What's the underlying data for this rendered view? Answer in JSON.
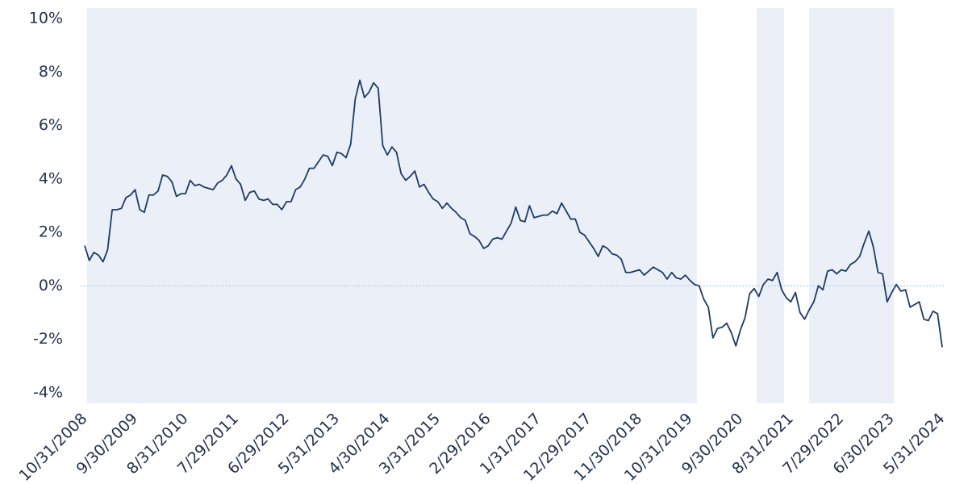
{
  "chart_data": {
    "type": "line",
    "categories": [
      "10/31/2008",
      null,
      null,
      null,
      null,
      null,
      null,
      null,
      null,
      null,
      null,
      "9/30/2009",
      null,
      null,
      null,
      null,
      null,
      null,
      null,
      null,
      null,
      null,
      "8/31/2010",
      null,
      null,
      null,
      null,
      null,
      null,
      null,
      null,
      null,
      null,
      "7/29/2011",
      null,
      null,
      null,
      null,
      null,
      null,
      null,
      null,
      null,
      null,
      "6/29/2012",
      null,
      null,
      null,
      null,
      null,
      null,
      null,
      null,
      null,
      null,
      "5/31/2013",
      null,
      null,
      null,
      null,
      null,
      null,
      null,
      null,
      null,
      null,
      "4/30/2014",
      null,
      null,
      null,
      null,
      null,
      null,
      null,
      null,
      null,
      null,
      "3/31/2015",
      null,
      null,
      null,
      null,
      null,
      null,
      null,
      null,
      null,
      null,
      "2/29/2016",
      null,
      null,
      null,
      null,
      null,
      null,
      null,
      null,
      null,
      null,
      "1/31/2017",
      null,
      null,
      null,
      null,
      null,
      null,
      null,
      null,
      null,
      null,
      "12/29/2017",
      null,
      null,
      null,
      null,
      null,
      null,
      null,
      null,
      null,
      null,
      "11/30/2018",
      null,
      null,
      null,
      null,
      null,
      null,
      null,
      null,
      null,
      null,
      "10/31/2019",
      null,
      null,
      null,
      null,
      null,
      null,
      null,
      null,
      null,
      null,
      "9/30/2020",
      null,
      null,
      null,
      null,
      null,
      null,
      null,
      null,
      null,
      null,
      "8/31/2021",
      null,
      null,
      null,
      null,
      null,
      null,
      null,
      null,
      null,
      null,
      "7/29/2022",
      null,
      null,
      null,
      null,
      null,
      null,
      null,
      null,
      null,
      null,
      "6/30/2023",
      null,
      null,
      null,
      null,
      null,
      null,
      null,
      null,
      null,
      null,
      "5/31/2024"
    ],
    "values": [
      1.5,
      0.95,
      1.25,
      1.15,
      0.9,
      1.35,
      2.85,
      2.85,
      2.9,
      3.3,
      3.4,
      3.6,
      2.85,
      2.75,
      3.4,
      3.4,
      3.55,
      4.15,
      4.1,
      3.9,
      3.35,
      3.45,
      3.45,
      3.95,
      3.75,
      3.8,
      3.7,
      3.65,
      3.6,
      3.85,
      3.95,
      4.15,
      4.5,
      4.0,
      3.8,
      3.2,
      3.5,
      3.55,
      3.25,
      3.2,
      3.25,
      3.05,
      3.05,
      2.85,
      3.15,
      3.15,
      3.6,
      3.7,
      4.0,
      4.4,
      4.4,
      4.65,
      4.9,
      4.85,
      4.5,
      5.0,
      4.95,
      4.8,
      5.3,
      7.0,
      7.7,
      7.05,
      7.25,
      7.6,
      7.4,
      5.25,
      4.9,
      5.2,
      5.0,
      4.2,
      3.95,
      4.1,
      4.3,
      3.7,
      3.8,
      3.5,
      3.25,
      3.15,
      2.9,
      3.1,
      2.9,
      2.75,
      2.55,
      2.45,
      1.95,
      1.85,
      1.7,
      1.4,
      1.5,
      1.75,
      1.8,
      1.75,
      2.05,
      2.35,
      2.95,
      2.45,
      2.4,
      3.0,
      2.55,
      2.6,
      2.65,
      2.65,
      2.8,
      2.7,
      3.1,
      2.8,
      2.5,
      2.5,
      2.0,
      1.9,
      1.65,
      1.4,
      1.1,
      1.5,
      1.4,
      1.2,
      1.15,
      1.0,
      0.5,
      0.5,
      0.55,
      0.6,
      0.4,
      0.55,
      0.7,
      0.6,
      0.5,
      0.25,
      0.5,
      0.3,
      0.25,
      0.4,
      0.2,
      0.05,
      0.0,
      -0.5,
      -0.8,
      -1.95,
      -1.6,
      -1.55,
      -1.4,
      -1.75,
      -2.25,
      -1.65,
      -1.2,
      -0.3,
      -0.1,
      -0.4,
      0.05,
      0.25,
      0.2,
      0.5,
      -0.15,
      -0.45,
      -0.6,
      -0.25,
      -1.0,
      -1.25,
      -0.9,
      -0.6,
      0.0,
      -0.15,
      0.55,
      0.6,
      0.45,
      0.6,
      0.55,
      0.8,
      0.9,
      1.1,
      1.6,
      2.05,
      1.45,
      0.5,
      0.45,
      -0.6,
      -0.25,
      0.05,
      -0.2,
      -0.15,
      -0.8,
      -0.7,
      -0.6,
      -1.25,
      -1.3,
      -0.95,
      -1.05,
      -2.3
    ],
    "color": "#1f3a64",
    "ylim": [
      -4.4,
      10.4
    ],
    "yticks": [
      {
        "value": -4,
        "label": "-4%"
      },
      {
        "value": -2,
        "label": "-2%"
      },
      {
        "value": 0,
        "label": "0%"
      },
      {
        "value": 2,
        "label": "2%"
      },
      {
        "value": 4,
        "label": "4%"
      },
      {
        "value": 6,
        "label": "6%"
      },
      {
        "value": 8,
        "label": "8%"
      },
      {
        "value": 10,
        "label": "10%"
      }
    ],
    "shaded_ranges": [
      {
        "start": 0.5,
        "end": 133.5
      },
      {
        "start": 146.5,
        "end": 152.5
      },
      {
        "start": 158,
        "end": 176.5
      }
    ],
    "shade_color": "#ebf0f8",
    "zero_line": true
  }
}
